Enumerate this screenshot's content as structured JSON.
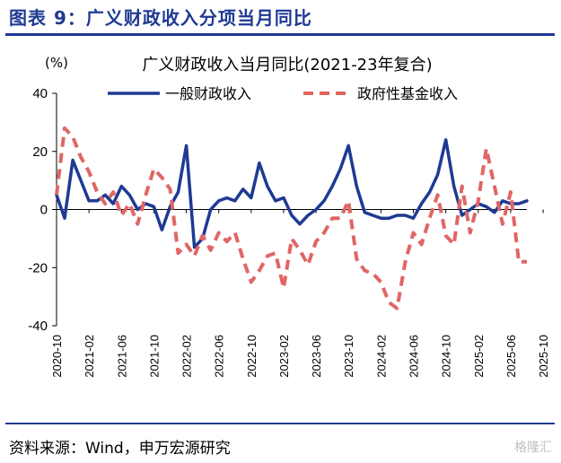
{
  "figure": {
    "title": "图表 9：广义财政收入分项当月同比",
    "source": "资料来源：Wind，申万宏源研究",
    "watermark": "格隆汇"
  },
  "colors": {
    "accent": "#1f3a93",
    "series_general": "#1f3a93",
    "series_fund": "#e06666"
  },
  "chart_data": {
    "type": "line",
    "title": "广义财政收入当月同比(2021-23年复合)",
    "ylabel": "(%)",
    "xlabel": "",
    "ylim": [
      -40,
      40
    ],
    "yticks": [
      -40,
      -20,
      0,
      20,
      40
    ],
    "grid": false,
    "legend_position": "top",
    "x_start": "2020-10",
    "xticks": [
      "2020-10",
      "2021-02",
      "2021-06",
      "2021-10",
      "2022-02",
      "2022-06",
      "2022-10",
      "2023-02",
      "2023-06",
      "2023-10",
      "2024-02",
      "2024-06",
      "2024-10",
      "2025-02",
      "2025-06",
      "2025-10"
    ],
    "series": [
      {
        "name": "一般财政收入",
        "style": "solid",
        "color": "#1f3a93",
        "values": [
          5,
          -3,
          17,
          10,
          3,
          3,
          5,
          2,
          8,
          5,
          0,
          2,
          1,
          -7,
          1,
          6,
          22,
          -13,
          -10,
          0,
          3,
          4,
          3,
          7,
          4,
          16,
          8,
          3,
          4,
          -2,
          -5,
          -2,
          0,
          3,
          8,
          14,
          22,
          8,
          -1,
          -2,
          -3,
          -3,
          -2,
          -2,
          -3,
          2,
          6,
          12,
          24,
          8,
          -2,
          0,
          2,
          1,
          -1,
          3,
          2,
          2,
          3
        ]
      },
      {
        "name": "政府性基金收入",
        "style": "dashed",
        "color": "#e06666",
        "values": [
          5,
          28,
          25,
          18,
          13,
          6,
          2,
          6,
          -2,
          2,
          -5,
          5,
          14,
          11,
          7,
          -15,
          -12,
          -16,
          -9,
          -14,
          -8,
          -11,
          -8,
          -17,
          -25,
          -21,
          -16,
          -15,
          -27,
          -10,
          -14,
          -19,
          -11,
          -8,
          -3,
          -3,
          3,
          -17,
          -21,
          -22,
          -25,
          -32,
          -34,
          -18,
          -8,
          -12,
          -3,
          5,
          -9,
          -12,
          8,
          -8,
          3,
          21,
          8,
          -5,
          6,
          -18,
          -18
        ]
      }
    ]
  }
}
